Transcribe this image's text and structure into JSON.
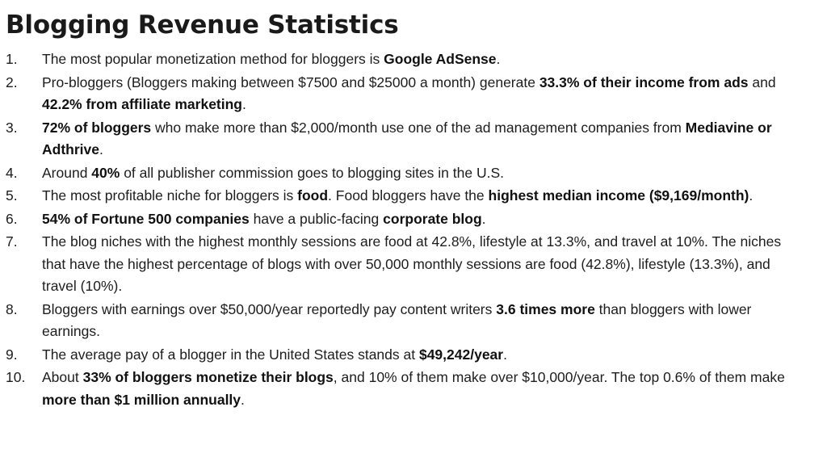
{
  "title": "Blogging Revenue Statistics",
  "items": [
    {
      "number": "1.",
      "segments": [
        {
          "text": "The most popular monetization method for bloggers is ",
          "bold": false
        },
        {
          "text": "Google AdSense",
          "bold": true
        },
        {
          "text": ".",
          "bold": false
        }
      ]
    },
    {
      "number": "2.",
      "segments": [
        {
          "text": "Pro-bloggers (Bloggers making between $7500 and $25000 a month) generate ",
          "bold": false
        },
        {
          "text": "33.3% of their income from ads",
          "bold": true
        },
        {
          "text": " and ",
          "bold": false
        },
        {
          "text": "42.2% from affiliate marketing",
          "bold": true
        },
        {
          "text": ".",
          "bold": false
        }
      ]
    },
    {
      "number": "3.",
      "segments": [
        {
          "text": "72% of bloggers",
          "bold": true
        },
        {
          "text": " who make more than $2,000/month use one of the ad management companies from ",
          "bold": false
        },
        {
          "text": "Mediavine or Adthrive",
          "bold": true
        },
        {
          "text": ".",
          "bold": false
        }
      ]
    },
    {
      "number": "4.",
      "segments": [
        {
          "text": "Around ",
          "bold": false
        },
        {
          "text": "40%",
          "bold": true
        },
        {
          "text": " of all publisher commission goes to blogging sites in the U.S.",
          "bold": false
        }
      ]
    },
    {
      "number": "5.",
      "segments": [
        {
          "text": "The most profitable niche for bloggers is ",
          "bold": false
        },
        {
          "text": "food",
          "bold": true
        },
        {
          "text": ". Food bloggers have the ",
          "bold": false
        },
        {
          "text": "highest median income ($9,169/month)",
          "bold": true
        },
        {
          "text": ".",
          "bold": false
        }
      ]
    },
    {
      "number": "6.",
      "segments": [
        {
          "text": "54% of Fortune 500 companies",
          "bold": true
        },
        {
          "text": " have a public-facing ",
          "bold": false
        },
        {
          "text": "corporate blog",
          "bold": true
        },
        {
          "text": ".",
          "bold": false
        }
      ]
    },
    {
      "number": "7.",
      "segments": [
        {
          "text": "The blog niches with the highest monthly sessions are food at 42.8%, lifestyle at 13.3%, and travel at 10%. The niches that have the highest percentage of blogs with over 50,000 monthly sessions are food (42.8%), lifestyle (13.3%), and travel (10%).",
          "bold": false
        }
      ]
    },
    {
      "number": "8.",
      "segments": [
        {
          "text": "Bloggers with earnings over $50,000/year reportedly pay content writers ",
          "bold": false
        },
        {
          "text": "3.6 times more",
          "bold": true
        },
        {
          "text": " than bloggers with lower earnings.",
          "bold": false
        }
      ]
    },
    {
      "number": "9.",
      "segments": [
        {
          "text": "The average pay of a blogger in the United States stands at ",
          "bold": false
        },
        {
          "text": "$49,242/year",
          "bold": true
        },
        {
          "text": ".",
          "bold": false
        }
      ]
    },
    {
      "number": "10.",
      "segments": [
        {
          "text": "About ",
          "bold": false
        },
        {
          "text": "33% of bloggers monetize their blogs",
          "bold": true
        },
        {
          "text": ", and 10% of them make over $10,000/year. The top 0.6% of them make ",
          "bold": false
        },
        {
          "text": "more than $1 million annually",
          "bold": true
        },
        {
          "text": ".",
          "bold": false
        }
      ]
    }
  ]
}
